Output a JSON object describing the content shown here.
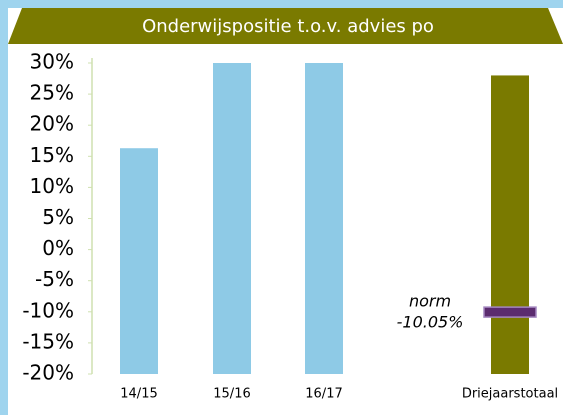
{
  "chart_data": {
    "type": "bar",
    "title": "Onderwijspositie t.o.v. advies po",
    "categories": [
      "14/15",
      "15/16",
      "16/17",
      "Driejaarstotaal"
    ],
    "values": [
      16.3,
      30,
      30,
      28
    ],
    "colors": [
      "#8ecae6",
      "#8ecae6",
      "#8ecae6",
      "#7a7a00"
    ],
    "ylim": [
      -20,
      30
    ],
    "yticks": [
      {
        "value": -20,
        "label": "-20%"
      },
      {
        "value": -15,
        "label": "-15%"
      },
      {
        "value": -10,
        "label": "-10%"
      },
      {
        "value": -5,
        "label": "-5%"
      },
      {
        "value": 0,
        "label": "0%"
      },
      {
        "value": 5,
        "label": "5%"
      },
      {
        "value": 10,
        "label": "10%"
      },
      {
        "value": 15,
        "label": "15%"
      },
      {
        "value": 20,
        "label": "20%"
      },
      {
        "value": 25,
        "label": "25%"
      },
      {
        "value": 30,
        "label": "30%"
      }
    ],
    "norm": {
      "label": "norm",
      "value": -10.05,
      "value_label": "-10.05%",
      "color": "#5b2c6f"
    }
  }
}
